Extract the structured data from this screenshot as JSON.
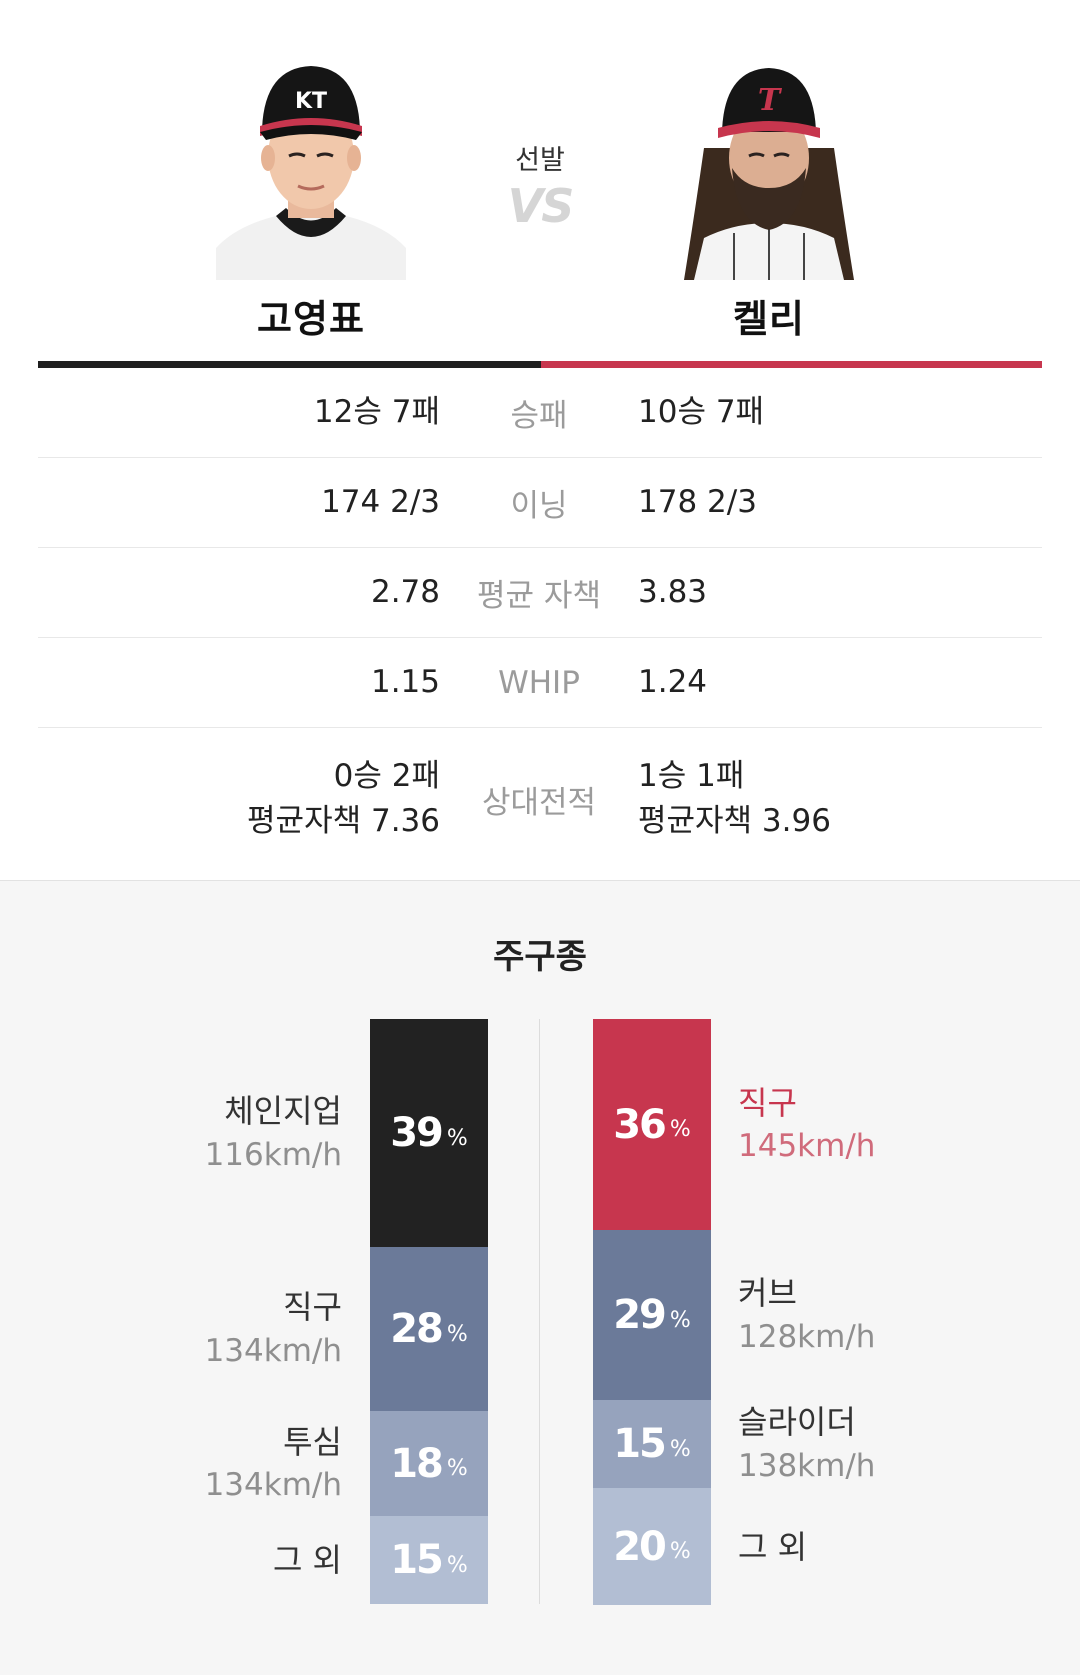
{
  "header": {
    "vs_label": "선발",
    "vs_text": "VS",
    "left_player": {
      "name": "고영표",
      "cap_logo": "KT"
    },
    "right_player": {
      "name": "켈리",
      "cap_logo": "T"
    },
    "colors": {
      "left": "#1f1f1f",
      "right": "#c7364e"
    }
  },
  "stats": [
    {
      "label": "승패",
      "left": "12승 7패",
      "right": "10승 7패"
    },
    {
      "label": "이닝",
      "left": "174 2/3",
      "right": "178 2/3"
    },
    {
      "label": "평균 자책",
      "left": "2.78",
      "right": "3.83"
    },
    {
      "label": "WHIP",
      "left": "1.15",
      "right": "1.24"
    },
    {
      "label": "상대전적",
      "left_line1": "0승 2패",
      "left_line2": "평균자책 7.36",
      "right_line1": "1승 1패",
      "right_line2": "평균자책 3.96"
    }
  ],
  "pitch": {
    "title": "주구종",
    "unit": "%",
    "left": [
      {
        "name": "체인지업",
        "speed": "116km/h",
        "pct": 39,
        "color": "#222222"
      },
      {
        "name": "직구",
        "speed": "134km/h",
        "pct": 28,
        "color": "#6b7a99"
      },
      {
        "name": "투심",
        "speed": "134km/h",
        "pct": 18,
        "color": "#96a3bd"
      },
      {
        "name": "그 외",
        "speed": "",
        "pct": 15,
        "color": "#b2bed3"
      }
    ],
    "right": [
      {
        "name": "직구",
        "speed": "145km/h",
        "pct": 36,
        "color": "#c7364e"
      },
      {
        "name": "커브",
        "speed": "128km/h",
        "pct": 29,
        "color": "#6b7a99"
      },
      {
        "name": "슬라이더",
        "speed": "138km/h",
        "pct": 15,
        "color": "#96a3bd"
      },
      {
        "name": "그 외",
        "speed": "",
        "pct": 20,
        "color": "#b2bed3"
      }
    ]
  }
}
